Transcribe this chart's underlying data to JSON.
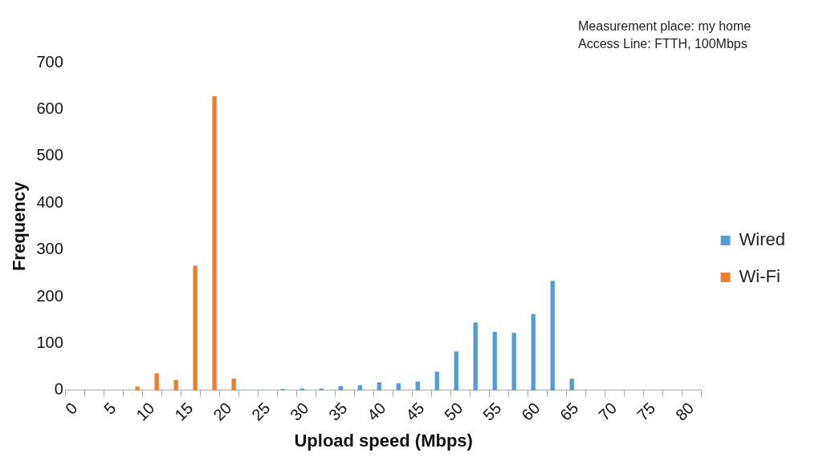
{
  "chart_data": {
    "type": "bar",
    "xlabel": "Upload speed (Mbps)",
    "ylabel": "Frequency",
    "categories": [
      "0",
      null,
      "5",
      null,
      "10",
      null,
      "15",
      null,
      "20",
      null,
      "25",
      null,
      "30",
      null,
      "35",
      null,
      "40",
      null,
      "45",
      null,
      "50",
      null,
      "55",
      null,
      "60",
      null,
      "65",
      null,
      "70",
      null,
      "75",
      null,
      "80"
    ],
    "series": [
      {
        "name": "Wired",
        "color": "#5b9bd5",
        "values": [
          0,
          0,
          0,
          0,
          0,
          0,
          0,
          0,
          0,
          1,
          1,
          3,
          4,
          4,
          9,
          11,
          17,
          15,
          19,
          40,
          83,
          145,
          125,
          123,
          163,
          234,
          25,
          0,
          0,
          0,
          0,
          0,
          0
        ]
      },
      {
        "name": "Wi-Fi",
        "color": "#ed7d31",
        "values": [
          0,
          0,
          0,
          8,
          36,
          22,
          266,
          628,
          25,
          0,
          0,
          0,
          0,
          0,
          0,
          0,
          0,
          0,
          0,
          0,
          0,
          0,
          0,
          0,
          0,
          0,
          0,
          0,
          0,
          0,
          0,
          0,
          0
        ]
      }
    ],
    "ylim": [
      0,
      700
    ],
    "yticks": [
      0,
      100,
      200,
      300,
      400,
      500,
      600,
      700
    ],
    "grid": false,
    "legend": "right",
    "annotations": [
      "Measurement place: my home",
      "Access Line: FTTH, 100Mbps"
    ]
  }
}
